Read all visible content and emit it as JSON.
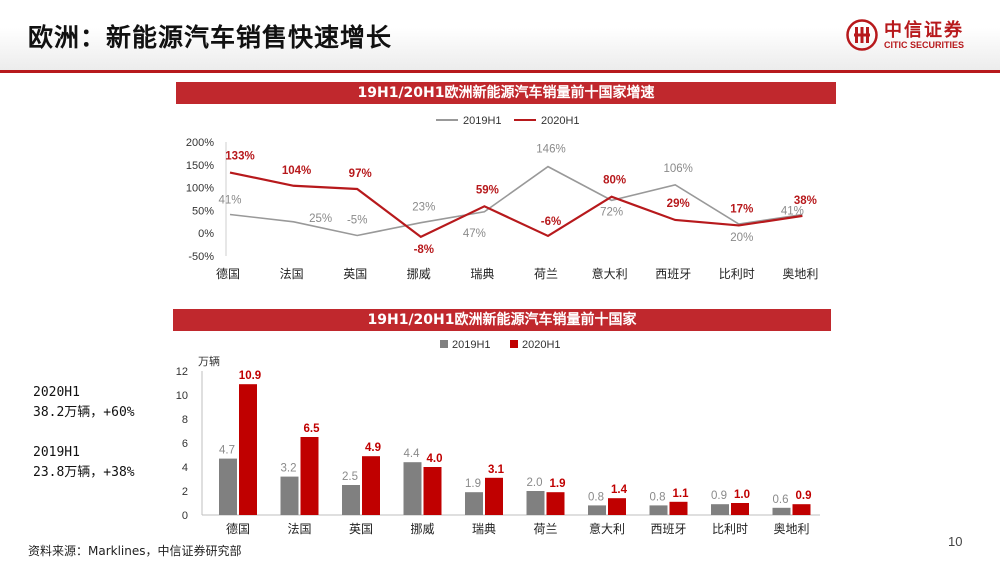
{
  "page": {
    "title": "欧洲：新能源汽车销售快速增长",
    "logo_cn": "中信证券",
    "logo_en": "CITIC SECURITIES",
    "page_number": "10",
    "source": "资料来源：Marklines，中信证券研究部",
    "brand_color": "#b7191c"
  },
  "notes": {
    "n2020_title": "2020H1",
    "n2020_value": "38.2万辆，+60%",
    "n2019_title": "2019H1",
    "n2019_value": "23.8万辆，+38%"
  },
  "chart_data": [
    {
      "type": "line",
      "title": "19H1/20H1欧洲新能源汽车销量前十国家增速",
      "categories": [
        "德国",
        "法国",
        "英国",
        "挪威",
        "瑞典",
        "荷兰",
        "意大利",
        "西班牙",
        "比利时",
        "奥地利"
      ],
      "series": [
        {
          "name": "2019H1",
          "color": "#999999",
          "values": [
            41,
            25,
            -5,
            23,
            47,
            146,
            72,
            106,
            20,
            41
          ],
          "labels": [
            "41%",
            "25%",
            "-5%",
            "23%",
            "47%",
            "146%",
            "72%",
            "106%",
            "20%",
            "41%"
          ]
        },
        {
          "name": "2020H1",
          "color": "#b7191c",
          "values": [
            133,
            104,
            97,
            -8,
            59,
            -6,
            80,
            29,
            17,
            38
          ],
          "labels": [
            "133%",
            "104%",
            "97%",
            "-8%",
            "59%",
            "-6%",
            "80%",
            "29%",
            "17%",
            "38%"
          ]
        }
      ],
      "yticks": [
        "-50%",
        "0%",
        "50%",
        "100%",
        "150%",
        "200%"
      ],
      "ylim": [
        -50,
        200
      ],
      "legend_position": "top-center"
    },
    {
      "type": "bar",
      "title": "19H1/20H1欧洲新能源汽车销量前十国家",
      "ylabel": "万辆",
      "categories": [
        "德国",
        "法国",
        "英国",
        "挪威",
        "瑞典",
        "荷兰",
        "意大利",
        "西班牙",
        "比利时",
        "奥地利"
      ],
      "series": [
        {
          "name": "2019H1",
          "color": "#808080",
          "values": [
            4.7,
            3.2,
            2.5,
            4.4,
            1.9,
            2.0,
            0.8,
            0.8,
            0.9,
            0.6
          ],
          "labels": [
            "4.7",
            "3.2",
            "2.5",
            "4.4",
            "1.9",
            "2.0",
            "0.8",
            "0.8",
            "0.9",
            "0.6"
          ]
        },
        {
          "name": "2020H1",
          "color": "#c00000",
          "values": [
            10.9,
            6.5,
            4.9,
            4.0,
            3.1,
            1.9,
            1.4,
            1.1,
            1.0,
            0.9
          ],
          "labels": [
            "10.9",
            "6.5",
            "4.9",
            "4.0",
            "3.1",
            "1.9",
            "1.4",
            "1.1",
            "1.0",
            "0.9"
          ]
        }
      ],
      "yticks": [
        "0",
        "2",
        "4",
        "6",
        "8",
        "10",
        "12"
      ],
      "ylim": [
        0,
        12
      ],
      "legend_position": "top-center"
    }
  ]
}
